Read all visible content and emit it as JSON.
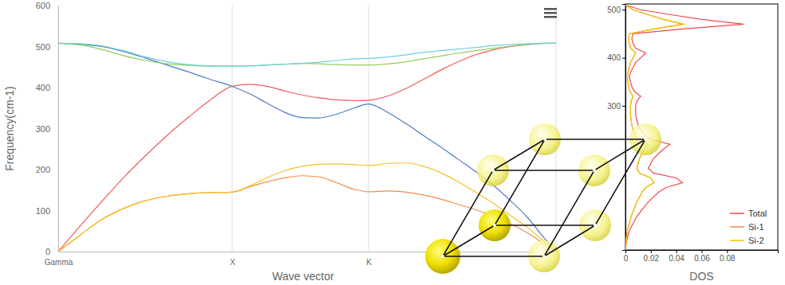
{
  "chart_data": [
    {
      "type": "line",
      "x_label": "Wave vector",
      "y_label": "Frequency(cm-1)",
      "x": [
        0,
        0.125,
        0.25,
        0.375,
        0.5,
        0.625,
        0.75,
        0.875,
        1,
        1.1,
        1.2,
        1.3,
        1.4,
        1.5,
        1.6,
        1.7,
        1.784,
        1.9,
        2.0,
        2.1,
        2.2,
        2.3,
        2.4,
        2.5,
        2.6,
        2.7,
        2.8,
        2.862
      ],
      "xlim": [
        0,
        2.862
      ],
      "xticks": [
        {
          "value": 0,
          "label": "Gamma"
        },
        {
          "value": 1,
          "label": "X"
        },
        {
          "value": 1.784,
          "label": "K"
        }
      ],
      "ylim": [
        0,
        600
      ],
      "yticks": [
        0,
        100,
        200,
        300,
        400,
        500,
        600
      ],
      "grid": "x",
      "series": [
        {
          "color": "#f4595b",
          "values": [
            0,
            62,
            122,
            180,
            233,
            283,
            328,
            370,
            403,
            408,
            403,
            392,
            382,
            375,
            370,
            368,
            369,
            380,
            398,
            420,
            443,
            463,
            480,
            492,
            500,
            505,
            508,
            508
          ]
        },
        {
          "color": "#4f7bc2",
          "values": [
            508,
            506,
            500,
            488,
            472,
            455,
            438,
            420,
            403,
            385,
            362,
            340,
            327,
            326,
            335,
            350,
            360,
            338,
            312,
            283,
            255,
            225,
            195,
            162,
            124,
            82,
            30,
            0
          ]
        },
        {
          "color": "#93cd5e",
          "values": [
            508,
            504,
            493,
            478,
            466,
            458,
            454,
            452,
            452,
            453,
            455,
            457,
            459,
            458,
            456,
            455,
            455,
            458,
            463,
            470,
            477,
            484,
            490,
            496,
            501,
            505,
            508,
            508
          ]
        },
        {
          "color": "#6dd0e0",
          "values": [
            508,
            507,
            502,
            490,
            475,
            463,
            456,
            453,
            452,
            453,
            455,
            457,
            459,
            462,
            466,
            470,
            471,
            475,
            480,
            486,
            490,
            494,
            498,
            502,
            505,
            507,
            508,
            508
          ]
        },
        {
          "color": "#f28d4b",
          "values": [
            0,
            40,
            78,
            105,
            124,
            135,
            141,
            144,
            145,
            158,
            170,
            180,
            185,
            182,
            168,
            152,
            146,
            148,
            145,
            138,
            128,
            115,
            102,
            87,
            68,
            45,
            17,
            0
          ]
        },
        {
          "color": "#f6c026",
          "values": [
            0,
            40,
            78,
            105,
            124,
            135,
            141,
            144,
            145,
            160,
            180,
            197,
            208,
            213,
            214,
            212,
            210,
            215,
            216,
            208,
            192,
            170,
            145,
            118,
            88,
            58,
            22,
            0
          ]
        }
      ]
    },
    {
      "type": "line",
      "orientation": "horizontal",
      "y_label": "DOS",
      "x": [
        0,
        10,
        20,
        30,
        40,
        50,
        60,
        70,
        80,
        90,
        100,
        110,
        120,
        130,
        140,
        150,
        160,
        170,
        180,
        190,
        200,
        210,
        220,
        230,
        240,
        250,
        260,
        270,
        280,
        290,
        300,
        310,
        320,
        330,
        340,
        350,
        360,
        370,
        380,
        390,
        400,
        410,
        420,
        430,
        440,
        450,
        460,
        470,
        480,
        490,
        500,
        510
      ],
      "xlim": [
        0,
        512
      ],
      "xticks": [
        300,
        400,
        500
      ],
      "ylim": [
        0,
        0.12
      ],
      "yticks": [
        0,
        0.02,
        0.04,
        0.06,
        0.08
      ],
      "legend": "lower right",
      "series": [
        {
          "name": "Total",
          "color": "#f0484e",
          "values": [
            0,
            0.0005,
            0.001,
            0.002,
            0.003,
            0.005,
            0.007,
            0.009,
            0.012,
            0.015,
            0.018,
            0.022,
            0.026,
            0.032,
            0.045,
            0.04,
            0.022,
            0.018,
            0.02,
            0.022,
            0.026,
            0.03,
            0.035,
            0.02,
            0.015,
            0.012,
            0.01,
            0.009,
            0.008,
            0.008,
            0.008,
            0.009,
            0.012,
            0.007,
            0.005,
            0.004,
            0.003,
            0.004,
            0.006,
            0.008,
            0.012,
            0.016,
            0.008,
            0.006,
            0.005,
            0.006,
            0.045,
            0.093,
            0.06,
            0.035,
            0.012,
            0
          ]
        },
        {
          "name": "Si-1",
          "color": "#f28d4b",
          "values": [
            0,
            0.00025,
            0.0005,
            0.001,
            0.0015,
            0.0025,
            0.0035,
            0.0045,
            0.006,
            0.0075,
            0.009,
            0.011,
            0.013,
            0.016,
            0.0225,
            0.02,
            0.011,
            0.009,
            0.01,
            0.011,
            0.013,
            0.015,
            0.016,
            0.01,
            0.0075,
            0.006,
            0.005,
            0.0045,
            0.004,
            0.004,
            0.004,
            0.0045,
            0.006,
            0.0035,
            0.0025,
            0.002,
            0.0015,
            0.002,
            0.003,
            0.004,
            0.006,
            0.008,
            0.004,
            0.003,
            0.0025,
            0.003,
            0.0225,
            0.045,
            0.03,
            0.0175,
            0.006,
            0
          ]
        },
        {
          "name": "Si-2",
          "color": "#f5c400",
          "values": [
            0,
            0.00025,
            0.0005,
            0.001,
            0.0015,
            0.0025,
            0.0035,
            0.0045,
            0.006,
            0.0075,
            0.009,
            0.011,
            0.013,
            0.016,
            0.0225,
            0.02,
            0.011,
            0.009,
            0.01,
            0.011,
            0.013,
            0.015,
            0.0175,
            0.01,
            0.0075,
            0.006,
            0.005,
            0.0045,
            0.004,
            0.004,
            0.004,
            0.0045,
            0.006,
            0.0035,
            0.0025,
            0.002,
            0.0015,
            0.002,
            0.003,
            0.004,
            0.006,
            0.008,
            0.004,
            0.003,
            0.0025,
            0.003,
            0.0225,
            0.0465,
            0.03,
            0.0175,
            0.006,
            0
          ]
        }
      ]
    }
  ]
}
